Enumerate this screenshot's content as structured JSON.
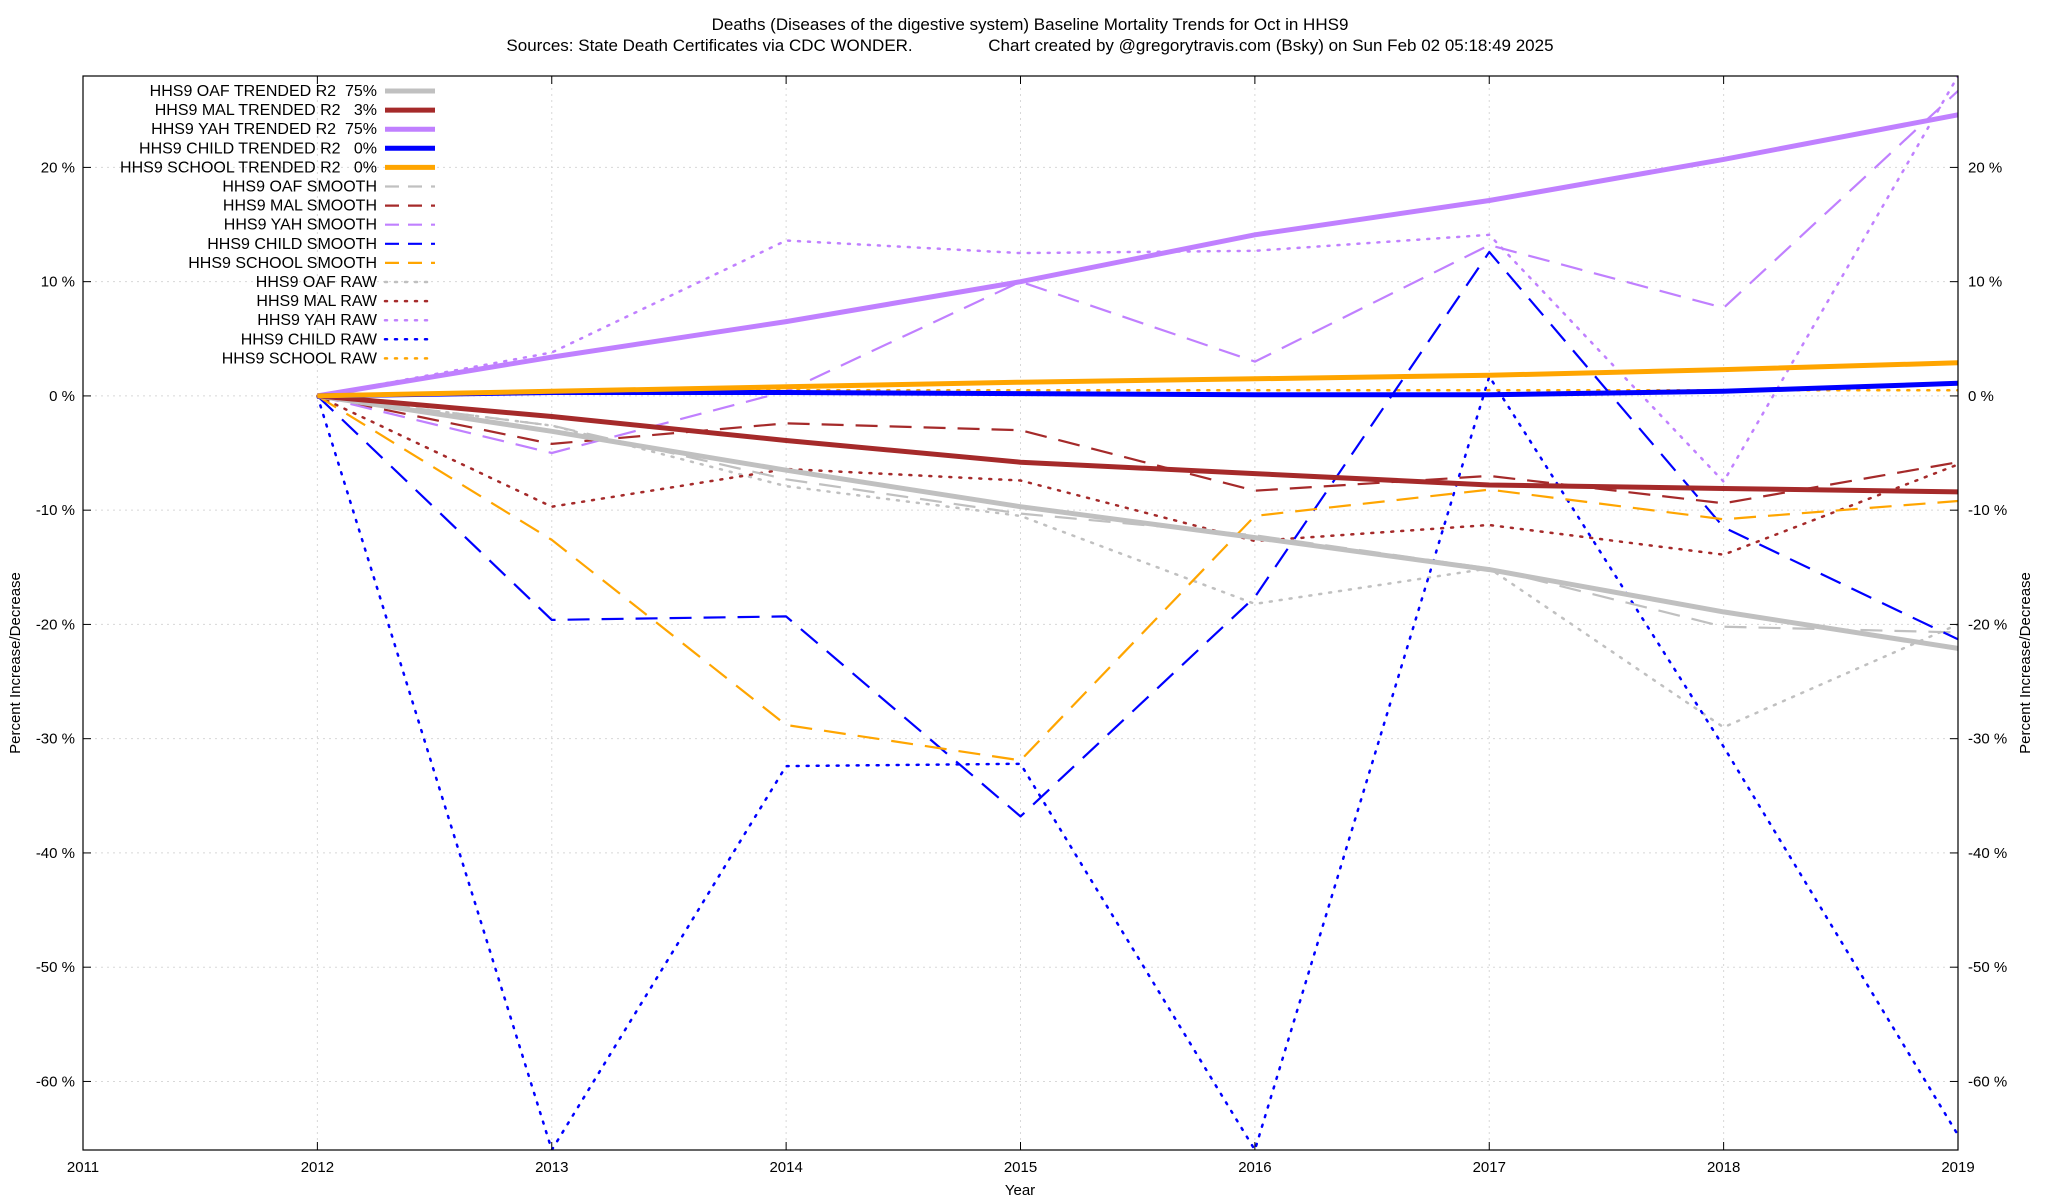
{
  "chart_data": {
    "type": "line",
    "title": "Deaths (Diseases of the digestive system)  Baseline Mortality Trends for Oct in HHS9",
    "subtitle": "Sources: State Death Certificates via CDC WONDER.                Chart created by @gregorytravis.com (Bsky) on Sun Feb 02 05:18:49 2025",
    "xlabel": "Year",
    "ylabel": "Percent Increase/Decrease",
    "y2label": "Percent Increase/Decrease",
    "xlim": [
      2011,
      2019
    ],
    "ylim": [
      -66,
      28
    ],
    "x_ticks": [
      "2011",
      "2012",
      "2013",
      "2014",
      "2015",
      "2016",
      "2017",
      "2018",
      "2019"
    ],
    "y_ticks": [
      20,
      10,
      0,
      -10,
      -20,
      -30,
      -40,
      -50,
      -60
    ],
    "y_tick_labels": [
      "20 %",
      "10 %",
      "0 %",
      "-10 %",
      "-20 %",
      "-30 %",
      "-40 %",
      "-50 %",
      "-60 %"
    ],
    "y2_tick_labels": [
      "20 %",
      "10 %",
      "0 %",
      "-10 %",
      "-20 %",
      "-30 %",
      "-40 %",
      "-50 %",
      "-60 %"
    ],
    "grid": true,
    "legend_position": "top-left",
    "x": [
      2012,
      2013,
      2014,
      2015,
      2016,
      2017,
      2018,
      2019
    ],
    "series": [
      {
        "name": "HHS9 OAF TRENDED R2  75%",
        "style": "solid",
        "color": "#c0c0c0",
        "values": [
          0,
          -3.1,
          -6.5,
          -9.7,
          -12.4,
          -15.2,
          -18.9,
          -22.1
        ]
      },
      {
        "name": "HHS9 MAL TRENDED R2   3%",
        "style": "solid",
        "color": "#a52a2a",
        "values": [
          0,
          -1.8,
          -3.9,
          -5.8,
          -6.8,
          -7.8,
          -8.1,
          -8.4
        ]
      },
      {
        "name": "HHS9 YAH TRENDED R2  75%",
        "style": "solid",
        "color": "#c080ff",
        "values": [
          0,
          3.4,
          6.5,
          10.0,
          14.1,
          17.1,
          20.7,
          24.6
        ]
      },
      {
        "name": "HHS9 CHILD TRENDED R2   0%",
        "style": "solid",
        "color": "#0000ff",
        "values": [
          0,
          0.3,
          0.3,
          0.2,
          0.1,
          0.1,
          0.4,
          1.1
        ]
      },
      {
        "name": "HHS9 SCHOOL TRENDED R2   0%",
        "style": "solid",
        "color": "#ffa500",
        "values": [
          0,
          0.4,
          0.8,
          1.2,
          1.5,
          1.8,
          2.3,
          2.9
        ]
      },
      {
        "name": "HHS9 OAF SMOOTH",
        "style": "dashed",
        "color": "#c0c0c0",
        "values": [
          0,
          -2.6,
          -7.3,
          -10.3,
          -12.2,
          -15.1,
          -20.2,
          -20.7
        ]
      },
      {
        "name": "HHS9 MAL SMOOTH",
        "style": "dashed",
        "color": "#a52a2a",
        "values": [
          0,
          -4.2,
          -2.4,
          -3.0,
          -8.3,
          -7.0,
          -9.4,
          -5.8
        ]
      },
      {
        "name": "HHS9 YAH SMOOTH",
        "style": "dashed",
        "color": "#c080ff",
        "values": [
          0,
          -5.0,
          0.4,
          10.0,
          3.0,
          13.2,
          7.7,
          26.7
        ]
      },
      {
        "name": "HHS9 CHILD SMOOTH",
        "style": "dashed",
        "color": "#0000ff",
        "values": [
          0,
          -19.6,
          -19.3,
          -36.8,
          -17.6,
          12.6,
          -11.5,
          -21.3
        ]
      },
      {
        "name": "HHS9 SCHOOL SMOOTH",
        "style": "dashed",
        "color": "#ffa500",
        "values": [
          0,
          -12.6,
          -28.8,
          -31.9,
          -10.5,
          -8.2,
          -10.8,
          -9.2
        ]
      },
      {
        "name": "HHS9 OAF RAW",
        "style": "dotted",
        "color": "#c0c0c0",
        "values": [
          0,
          -2.6,
          -7.9,
          -10.5,
          -18.2,
          -15.1,
          -29.0,
          -20.0
        ]
      },
      {
        "name": "HHS9 MAL RAW",
        "style": "dotted",
        "color": "#a52a2a",
        "values": [
          0,
          -9.7,
          -6.4,
          -7.4,
          -12.7,
          -11.3,
          -13.9,
          -6.0
        ]
      },
      {
        "name": "HHS9 YAH RAW",
        "style": "dotted",
        "color": "#c080ff",
        "values": [
          0,
          3.8,
          13.6,
          12.5,
          12.7,
          14.1,
          -7.5,
          28.0
        ]
      },
      {
        "name": "HHS9 CHILD RAW",
        "style": "dotted",
        "color": "#0000ff",
        "values": [
          0,
          -66.0,
          -32.4,
          -32.2,
          -66.0,
          1.7,
          -30.7,
          -64.7
        ]
      },
      {
        "name": "HHS9 SCHOOL RAW",
        "style": "dotted",
        "color": "#ffa500",
        "values": [
          0,
          0.5,
          0.5,
          0.5,
          0.5,
          0.5,
          0.5,
          0.5
        ]
      }
    ]
  }
}
